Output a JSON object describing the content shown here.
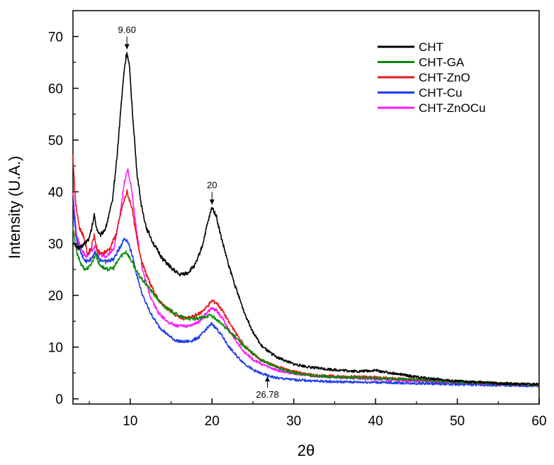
{
  "chart_data": {
    "type": "line",
    "title": "",
    "xlabel": "2θ",
    "ylabel": "Intensity (U.A.)",
    "xlim": [
      3,
      60
    ],
    "ylim": [
      -1,
      75
    ],
    "xticks": [
      10,
      20,
      30,
      40,
      50,
      60
    ],
    "yticks": [
      0,
      10,
      20,
      30,
      40,
      50,
      60,
      70
    ],
    "grid": false,
    "legend_position": "top-right",
    "series": [
      {
        "name": "CHT",
        "color": "#000000",
        "x": [
          3,
          3.8,
          4.4,
          5,
          5.3,
          5.6,
          5.9,
          6.3,
          7,
          7.8,
          8.4,
          8.9,
          9.3,
          9.6,
          9.9,
          10.3,
          10.8,
          11.4,
          12,
          13,
          14,
          15,
          16,
          17,
          18,
          18.8,
          19.4,
          20,
          20.5,
          21,
          21.5,
          22,
          23,
          24,
          25,
          26,
          27,
          28,
          30,
          32,
          35,
          38,
          40,
          45,
          50,
          55,
          60
        ],
        "y": [
          30,
          29,
          30,
          31,
          33,
          35.5,
          33,
          31.5,
          33,
          38,
          47,
          57,
          64,
          67,
          64,
          55,
          44,
          37,
          33,
          29.5,
          27,
          25.3,
          24,
          24.3,
          26,
          29.5,
          33.5,
          37,
          35.5,
          32,
          29,
          26,
          21,
          16.5,
          13,
          10.3,
          9,
          8,
          6.7,
          6.1,
          5.6,
          5.3,
          5.5,
          4.2,
          3.4,
          3,
          2.8
        ]
      },
      {
        "name": "CHT-GA",
        "color": "#0b8a0b",
        "x": [
          3,
          3.5,
          4,
          4.5,
          5,
          5.5,
          5.8,
          6.2,
          7,
          8,
          8.8,
          9.5,
          10.2,
          11,
          12,
          13,
          14,
          15,
          16,
          17,
          18,
          19,
          19.8,
          20.5,
          21.5,
          22.5,
          24,
          25,
          26,
          27,
          28,
          30,
          32,
          35,
          40,
          45,
          50,
          55,
          60
        ],
        "y": [
          33,
          28,
          26,
          25,
          25.5,
          27,
          28,
          26,
          25,
          25.3,
          27.5,
          28.5,
          26.5,
          24,
          22,
          20,
          18,
          17,
          16,
          15.5,
          15.4,
          15.8,
          16.2,
          15.4,
          14,
          12.5,
          10,
          8.8,
          7.5,
          6.8,
          6,
          5,
          4.5,
          4.2,
          4,
          3.7,
          3.3,
          3,
          2.7
        ]
      },
      {
        "name": "CHT-ZnO",
        "color": "#e31a1c",
        "x": [
          3,
          3.3,
          3.8,
          4.3,
          4.8,
          5.2,
          5.6,
          6,
          6.6,
          7.5,
          8.3,
          9,
          9.6,
          10.2,
          10.8,
          11.5,
          12.5,
          13.5,
          14.5,
          15.5,
          16.5,
          17.5,
          18.5,
          19.5,
          20,
          20.6,
          21.3,
          22,
          23,
          24,
          25,
          26,
          27,
          28,
          30,
          31.5,
          33,
          36,
          40,
          45,
          50,
          55,
          60
        ],
        "y": [
          47,
          38,
          33,
          31.5,
          28,
          29,
          31.5,
          28.5,
          28,
          29,
          32,
          37,
          40,
          37,
          31,
          26,
          22,
          19,
          17.5,
          16.2,
          15.5,
          15.8,
          16.5,
          18,
          19,
          18.5,
          17,
          15,
          12.5,
          10.2,
          8.7,
          7.5,
          6.8,
          6.2,
          5.3,
          4.8,
          4.5,
          4.3,
          4.2,
          3.7,
          3.3,
          3,
          2.7
        ]
      },
      {
        "name": "CHT-Cu",
        "color": "#1f3ee8",
        "x": [
          3,
          3.4,
          4,
          4.6,
          5.2,
          5.7,
          6.2,
          7,
          8,
          8.8,
          9.3,
          9.7,
          10.2,
          10.8,
          11.5,
          12.5,
          13.5,
          14.5,
          15.5,
          16.5,
          17.5,
          18.5,
          19.3,
          20,
          20.6,
          21.3,
          22,
          23,
          24,
          25,
          26,
          27,
          28,
          30,
          32,
          35,
          40,
          45,
          50,
          55,
          60
        ],
        "y": [
          38,
          31,
          28,
          26.5,
          27,
          28.5,
          27,
          26.5,
          27,
          29.5,
          31,
          30.5,
          28,
          24,
          20,
          16.5,
          14,
          12.5,
          11.3,
          11,
          11.2,
          12,
          13.5,
          14.5,
          13.5,
          12,
          10.2,
          8.3,
          6.8,
          5.6,
          4.9,
          4.4,
          4,
          3.7,
          3.5,
          3.3,
          3.2,
          3,
          2.8,
          2.6,
          2.5
        ]
      },
      {
        "name": "CHT-ZnOCu",
        "color": "#ff19ff",
        "x": [
          3,
          3.4,
          4,
          4.6,
          5.2,
          5.7,
          6.2,
          7,
          8,
          8.8,
          9.3,
          9.7,
          10.2,
          10.8,
          11.5,
          12.5,
          13.5,
          14.5,
          15.5,
          16.5,
          17.5,
          18.5,
          19.3,
          20,
          20.6,
          21.3,
          22,
          23,
          24,
          25,
          26,
          27,
          28,
          30,
          32,
          35,
          40,
          45,
          50,
          55,
          60
        ],
        "y": [
          40,
          32,
          29,
          27.5,
          28.5,
          29.5,
          28,
          27.5,
          29,
          36,
          42,
          44.5,
          40,
          32,
          25,
          19.5,
          16.5,
          15,
          14.2,
          14,
          14.3,
          15,
          16.5,
          17.5,
          17,
          15.5,
          13.5,
          11,
          9,
          7.6,
          6.8,
          6.1,
          5.5,
          4.9,
          4.5,
          4.2,
          3.8,
          3.4,
          3.1,
          2.8,
          2.6
        ]
      }
    ],
    "annotations": [
      {
        "text": "9.60",
        "x": 9.6,
        "y": 67,
        "arrow": "down"
      },
      {
        "text": "20",
        "x": 20,
        "y": 37,
        "arrow": "down"
      },
      {
        "text": "26.78",
        "x": 26.78,
        "y": 4.6,
        "arrow": "up"
      }
    ]
  }
}
